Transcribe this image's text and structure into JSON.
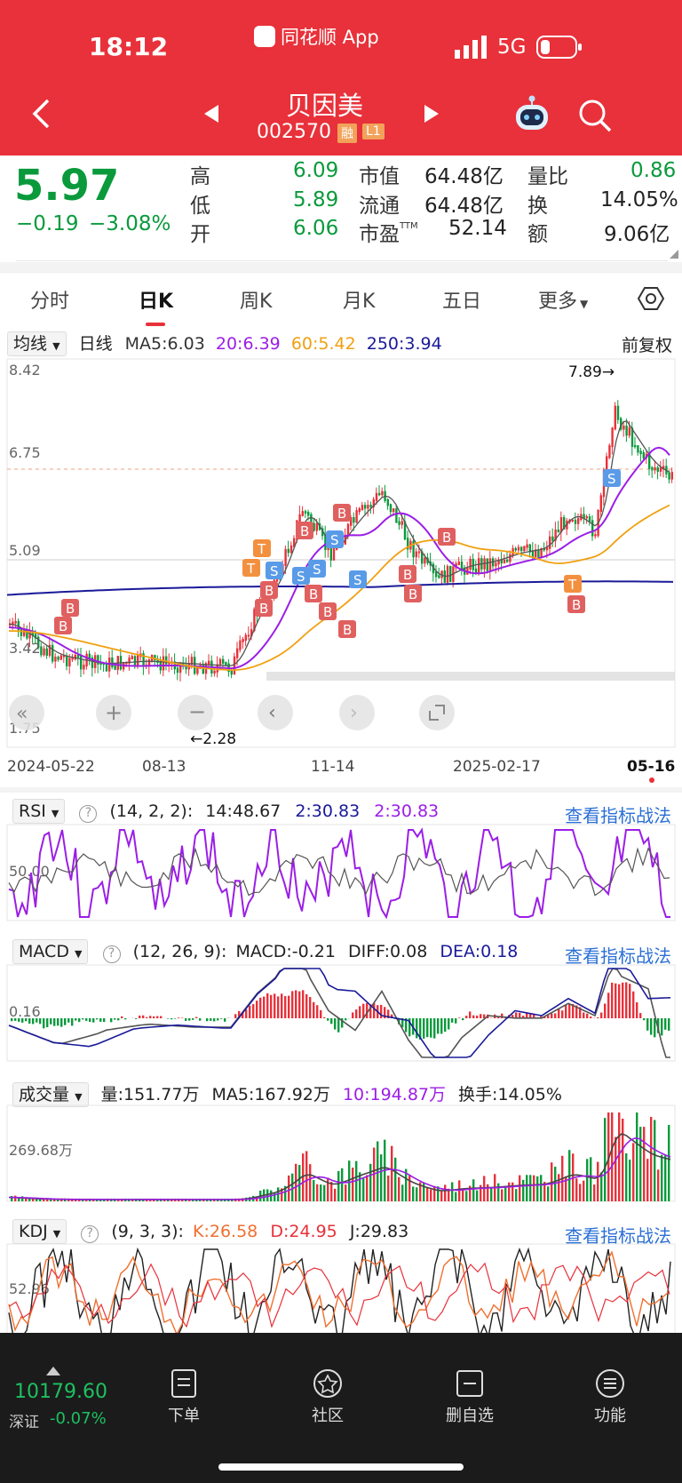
{
  "status": {
    "time": "18:12",
    "app": "同花顺 App",
    "network": "5G"
  },
  "stock": {
    "name": "贝因美",
    "code": "002570",
    "badge1": "融",
    "badge2": "L1"
  },
  "quote": {
    "price": "5.97",
    "change": "−0.19",
    "change_pct": "−3.08%",
    "high_label": "高",
    "high": "6.09",
    "low_label": "低",
    "low": "5.89",
    "open_label": "开",
    "open": "6.06",
    "mcap_label": "市值",
    "mcap": "64.48亿",
    "float_label": "流通",
    "float": "64.48亿",
    "pe_label": "市盈",
    "pe_sup": "TTM",
    "pe": "52.14",
    "vr_label": "量比",
    "vr": "0.86",
    "turn_label": "换",
    "turn": "14.05%",
    "amt_label": "额",
    "amt": "9.06亿"
  },
  "tabs": [
    "分时",
    "日K",
    "周K",
    "月K",
    "五日",
    "更多"
  ],
  "active_tab": "日K",
  "kline": {
    "ma_selector": "均线",
    "period": "日线",
    "ma5": "MA5:6.03",
    "ma20": "20:6.39",
    "ma60": "60:5.42",
    "ma250": "250:3.94",
    "adjust": "前复权",
    "y_ticks": [
      "8.42",
      "6.75",
      "5.09",
      "3.42",
      "1.75"
    ],
    "x_ticks": [
      "2024-05-22",
      "08-13",
      "11-14",
      "2025-02-17",
      "05-16"
    ],
    "high_mark": "7.89→",
    "low_mark": "←2.28",
    "colors": {
      "ma5": "#555555",
      "ma20": "#9b1ee6",
      "ma60": "#f0a010",
      "ma250": "#1a1a9a",
      "up": "#e8313a",
      "down": "#0a9a3c"
    }
  },
  "rsi": {
    "name": "RSI",
    "params": "(14, 2, 2):",
    "v1": "14:48.67",
    "v2": "2:30.83",
    "v3": "2:30.83",
    "tick": "50.00",
    "link": "查看指标战法"
  },
  "macd": {
    "name": "MACD",
    "params": "(12, 26, 9):",
    "macd": "MACD:-0.21",
    "diff": "DIFF:0.08",
    "dea": "DEA:0.18",
    "tick": "0.16",
    "link": "查看指标战法"
  },
  "volume": {
    "name": "成交量",
    "vol": "量:151.77万",
    "ma5": "MA5:167.92万",
    "ma10": "10:194.87万",
    "turn": "换手:14.05%",
    "tick": "269.68万"
  },
  "kdj": {
    "name": "KDJ",
    "params": "(9, 3, 3):",
    "k": "K:26.58",
    "d": "D:24.95",
    "j": "J:29.83",
    "tick": "52.96",
    "link": "查看指标战法"
  },
  "bottom": {
    "index_value": "10179.60",
    "index_name": "深证",
    "index_change": "-0.07%",
    "nav": [
      "下单",
      "社区",
      "删自选",
      "功能"
    ]
  }
}
